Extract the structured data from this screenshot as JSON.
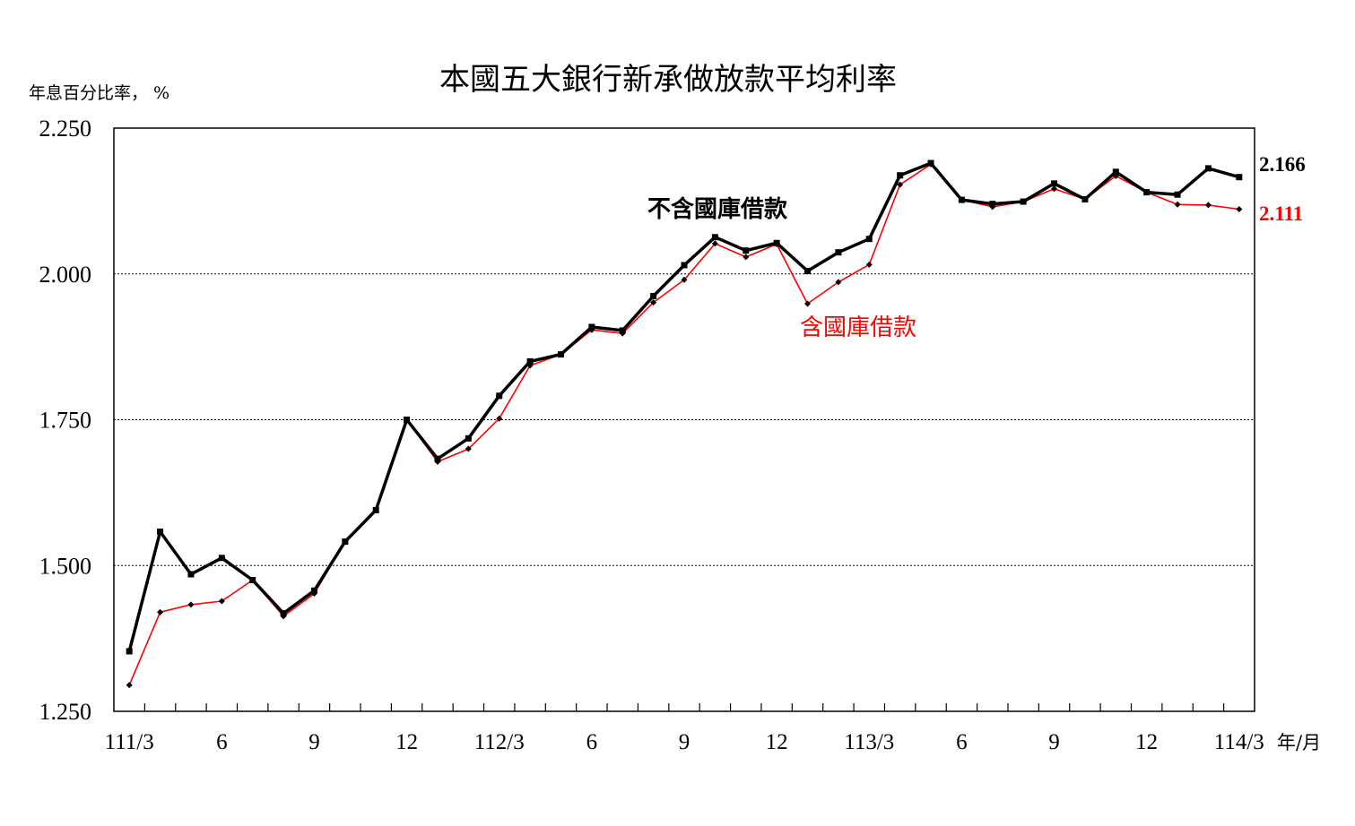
{
  "chart_data": {
    "type": "line",
    "title": "本國五大銀行新承做放款平均利率",
    "ylabel": "年息百分比率， %",
    "xlabel": "年/月",
    "ylim": [
      1.25,
      2.25
    ],
    "yticks": [
      "2.250",
      "2.000",
      "1.750",
      "1.500",
      "1.250"
    ],
    "ytick_values": [
      2.25,
      2.0,
      1.75,
      1.5,
      1.25
    ],
    "grid": "horizontal-dotted",
    "x": [
      "111/3",
      "111/4",
      "111/5",
      "111/6",
      "111/7",
      "111/8",
      "111/9",
      "111/10",
      "111/11",
      "111/12",
      "112/1",
      "112/2",
      "112/3",
      "112/4",
      "112/5",
      "112/6",
      "112/7",
      "112/8",
      "112/9",
      "112/10",
      "112/11",
      "112/12",
      "113/1",
      "113/2",
      "113/3",
      "113/4",
      "113/5",
      "113/6",
      "113/7",
      "113/8",
      "113/9",
      "113/10",
      "113/11",
      "113/12",
      "114/1",
      "114/2",
      "114/3"
    ],
    "x_tick_labels": [
      {
        "index": 0,
        "label": "111/3"
      },
      {
        "index": 3,
        "label": "6"
      },
      {
        "index": 6,
        "label": "9"
      },
      {
        "index": 9,
        "label": "12"
      },
      {
        "index": 12,
        "label": "112/3"
      },
      {
        "index": 15,
        "label": "6"
      },
      {
        "index": 18,
        "label": "9"
      },
      {
        "index": 21,
        "label": "12"
      },
      {
        "index": 24,
        "label": "113/3"
      },
      {
        "index": 27,
        "label": "6"
      },
      {
        "index": 30,
        "label": "9"
      },
      {
        "index": 33,
        "label": "12"
      },
      {
        "index": 36,
        "label": "114/3"
      }
    ],
    "series": [
      {
        "name": "不含國庫借款",
        "color": "#000000",
        "values": [
          1.353,
          1.558,
          1.485,
          1.513,
          1.475,
          1.418,
          1.457,
          1.541,
          1.595,
          1.75,
          1.683,
          1.718,
          1.791,
          1.85,
          1.862,
          1.909,
          1.903,
          1.962,
          2.015,
          2.063,
          2.04,
          2.053,
          2.005,
          2.037,
          2.06,
          2.169,
          2.19,
          2.127,
          2.12,
          2.124,
          2.155,
          2.128,
          2.175,
          2.14,
          2.136,
          2.181,
          2.166
        ],
        "end_label": "2.166"
      },
      {
        "name": "含國庫借款",
        "color": "#ff0000",
        "values": [
          1.295,
          1.42,
          1.433,
          1.439,
          1.475,
          1.413,
          1.452,
          1.541,
          1.595,
          1.75,
          1.678,
          1.7,
          1.752,
          1.843,
          1.862,
          1.904,
          1.898,
          1.951,
          1.99,
          2.052,
          2.029,
          2.051,
          1.949,
          1.986,
          2.016,
          2.153,
          2.188,
          2.127,
          2.115,
          2.124,
          2.146,
          2.128,
          2.168,
          2.14,
          2.119,
          2.118,
          2.111
        ],
        "end_label": "2.111"
      }
    ]
  }
}
